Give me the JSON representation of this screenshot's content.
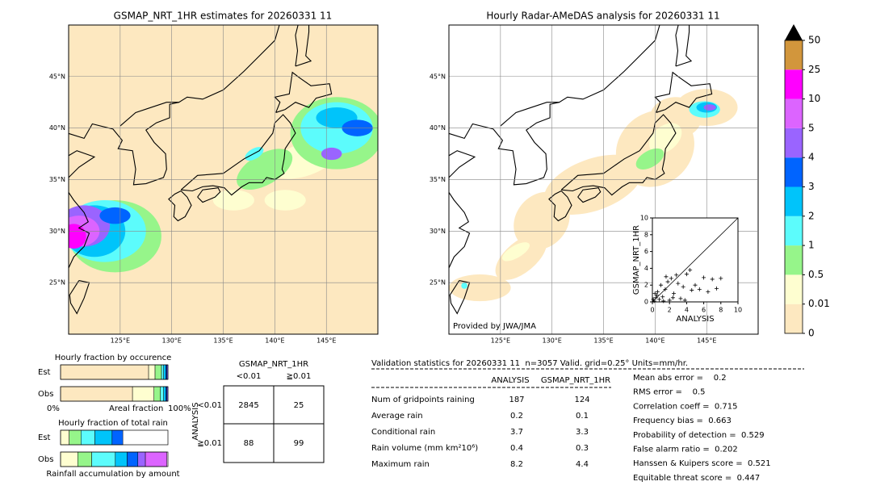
{
  "left_map": {
    "title": "GSMAP_NRT_1HR estimates for 20260331 11",
    "lon_ticks": [
      {
        "value": 125,
        "label": "125°E"
      },
      {
        "value": 130,
        "label": "130°E"
      },
      {
        "value": 135,
        "label": "135°E"
      },
      {
        "value": 140,
        "label": "140°E"
      },
      {
        "value": 145,
        "label": "145°E"
      }
    ],
    "lat_ticks": [
      {
        "value": 45,
        "label": "45°N"
      },
      {
        "value": 40,
        "label": "40°N"
      },
      {
        "value": 35,
        "label": "35°N"
      },
      {
        "value": 30,
        "label": "30°N"
      },
      {
        "value": 25,
        "label": "25°N"
      }
    ]
  },
  "right_map": {
    "title": "Hourly Radar-AMeDAS analysis for 20260331 11",
    "credit": "Provided by JWA/JMA",
    "lon_ticks": [
      {
        "value": 125,
        "label": "125°E"
      },
      {
        "value": 130,
        "label": "130°E"
      },
      {
        "value": 135,
        "label": "135°E"
      },
      {
        "value": 140,
        "label": "140°E"
      },
      {
        "value": 145,
        "label": "145°E"
      }
    ],
    "lat_ticks": [
      {
        "value": 45,
        "label": "45°N"
      },
      {
        "value": 40,
        "label": "40°N"
      },
      {
        "value": 35,
        "label": "35°N"
      },
      {
        "value": 30,
        "label": "30°N"
      },
      {
        "value": 25,
        "label": "25°N"
      }
    ]
  },
  "colorbar": {
    "levels": [
      0,
      0.01,
      0.5,
      1,
      2,
      3,
      4,
      5,
      10,
      25,
      50
    ],
    "colors": [
      "#fde8c0",
      "#fefed0",
      "#96f58a",
      "#5cfcfc",
      "#00c4fa",
      "#0064ff",
      "#9a64ff",
      "#dc64ff",
      "#ff00ff",
      "#d2963c"
    ],
    "extend_color": "#000000"
  },
  "scatter": {
    "type": "scatter",
    "xlabel": "ANALYSIS",
    "ylabel": "GSMAP_NRT_1HR",
    "xlim": [
      0,
      10
    ],
    "ylim": [
      0,
      10
    ],
    "xticks": [
      0,
      2,
      4,
      6,
      8,
      10
    ],
    "yticks": [
      0,
      2,
      4,
      6,
      8,
      10
    ],
    "x": [
      0.2,
      0.4,
      0.6,
      0.8,
      1.0,
      1.2,
      1.5,
      1.8,
      2.0,
      2.2,
      2.5,
      2.8,
      3.0,
      3.3,
      3.6,
      4.0,
      4.4,
      5.0,
      5.5,
      6.0,
      6.5,
      7.0,
      7.5,
      8.0,
      0.5,
      1.3,
      2.4,
      3.8,
      0.1,
      0.3,
      1.6,
      4.6
    ],
    "y": [
      0.1,
      0.5,
      1.2,
      0.3,
      2.0,
      0.6,
      1.5,
      2.4,
      0.2,
      2.8,
      1.0,
      3.2,
      2.2,
      0.4,
      1.8,
      3.3,
      3.8,
      2.0,
      1.5,
      2.9,
      1.2,
      2.7,
      1.6,
      2.8,
      0.8,
      0.1,
      0.5,
      0.2,
      0.3,
      1.0,
      3.0,
      1.4
    ]
  },
  "occurrence": {
    "title": "Hourly fraction by occurence",
    "rows": [
      "Est",
      "Obs"
    ],
    "axis_labels": [
      "0%",
      "Areal fraction",
      "100%"
    ],
    "est": [
      0.82,
      0.06,
      0.06,
      0.02,
      0.02,
      0.01,
      0.01,
      0,
      0,
      0
    ],
    "obs": [
      0.67,
      0.2,
      0.06,
      0.03,
      0.02,
      0.01,
      0.01,
      0,
      0,
      0
    ]
  },
  "amount": {
    "title": "Hourly fraction of total rain",
    "rows": [
      "Est",
      "Obs"
    ],
    "footer": "Rainfall accumulation by amount",
    "est": [
      0,
      0.08,
      0.11,
      0.13,
      0.16,
      0.1,
      0,
      0,
      0,
      0
    ],
    "obs": [
      0,
      0.16,
      0.13,
      0.22,
      0.11,
      0.1,
      0.07,
      0.2,
      0,
      0
    ]
  },
  "contingency": {
    "title": "GSMAP_NRT_1HR",
    "col_labels": [
      "<0.01",
      "≧0.01"
    ],
    "row_title": "ANALYSIS",
    "row_labels": [
      "<0.01",
      "≧0.01"
    ],
    "cells": [
      [
        2845,
        25
      ],
      [
        88,
        99
      ]
    ]
  },
  "stats": {
    "header": "Validation statistics for 20260331 11  n=3057 Valid. grid=0.25° Units=mm/hr.",
    "columns": [
      "ANALYSIS",
      "GSMAP_NRT_1HR"
    ],
    "rows": [
      {
        "label": "Num of gridpoints raining",
        "analysis": 187,
        "gsmap": 124
      },
      {
        "label": "Average rain",
        "analysis": 0.2,
        "gsmap": 0.1
      },
      {
        "label": "Conditional rain",
        "analysis": 3.7,
        "gsmap": 3.3
      },
      {
        "label": "Rain volume (mm km²10⁶)",
        "analysis": 0.4,
        "gsmap": 0.3
      },
      {
        "label": "Maximum rain",
        "analysis": 8.2,
        "gsmap": 4.4
      }
    ],
    "scores": [
      "Mean abs error =    0.2",
      "RMS error =    0.5",
      "Correlation coeff =  0.715",
      "Frequency bias =  0.663",
      "Probability of detection =  0.529",
      "False alarm ratio =  0.202",
      "Hanssen & Kuipers score =  0.521",
      "Equitable threat score =  0.447"
    ]
  }
}
